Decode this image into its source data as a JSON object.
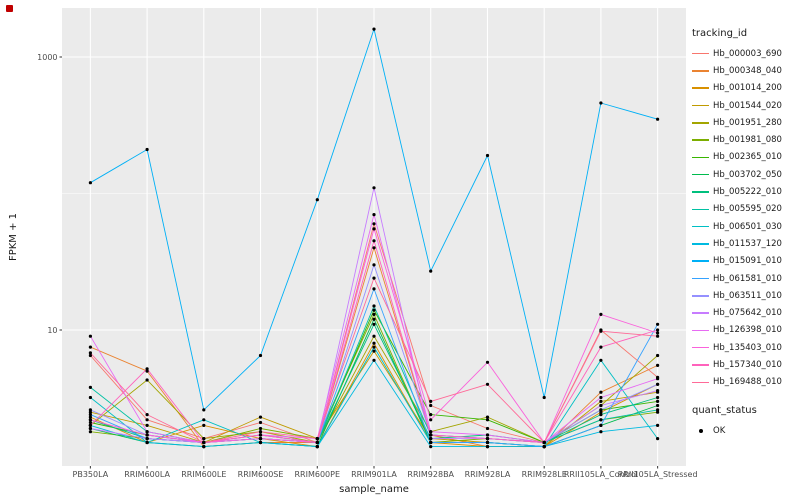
{
  "figure": {
    "background": "#FFFFFF",
    "panel_background": "#EBEBEB",
    "gridline_color": "#FFFFFF",
    "tick_text_color": "#4D4D4D"
  },
  "chart_data": {
    "type": "line",
    "title": "",
    "xlabel": "sample_name",
    "ylabel": "FPKM + 1",
    "y_scale": "log10",
    "ylim": [
      1,
      2300
    ],
    "y_ticks": [
      10,
      1000
    ],
    "y_tick_labels": [
      "10",
      "1000"
    ],
    "grid": true,
    "legend_position": "right",
    "legend_title": "tracking_id",
    "legend2_title": "quant_status",
    "quant_status_items": [
      "OK"
    ],
    "point_color": "#000000",
    "panel_bg": "#EBEBEB",
    "x": [
      "PB350LA",
      "RRIM600LA",
      "RRIM600LE",
      "RRIM600SE",
      "RRIM600PE",
      "RRIM901LA",
      "RRIM928BA",
      "RRIM928LA",
      "RRIM928LE",
      "RRII105LA_Control",
      "RRII105LA_Stressed"
    ],
    "series": [
      {
        "name": "Hb_000003_690",
        "color": "#F8766D",
        "values": [
          6.5,
          2.2,
          1.6,
          2.1,
          1.5,
          60,
          2.8,
          1.9,
          1.5,
          10,
          4.5
        ]
      },
      {
        "name": "Hb_000348_040",
        "color": "#EA8331",
        "values": [
          7.5,
          5.0,
          1.4,
          1.5,
          1.5,
          40,
          1.7,
          1.4,
          1.4,
          3.5,
          5.5
        ]
      },
      {
        "name": "Hb_001014_200",
        "color": "#D89000",
        "values": [
          2.3,
          1.5,
          2.0,
          1.6,
          1.4,
          8.0,
          1.5,
          1.4,
          1.4,
          2.5,
          4.0
        ]
      },
      {
        "name": "Hb_001544_020",
        "color": "#C09B00",
        "values": [
          2.5,
          2.0,
          1.5,
          2.3,
          1.6,
          7.0,
          1.6,
          1.5,
          1.4,
          3.0,
          3.5
        ]
      },
      {
        "name": "Hb_001951_280",
        "color": "#A3A500",
        "values": [
          2.0,
          4.3,
          1.6,
          1.8,
          1.5,
          9.0,
          1.8,
          2.3,
          1.5,
          2.8,
          6.5
        ]
      },
      {
        "name": "Hb_001981_080",
        "color": "#7CAE00",
        "values": [
          1.8,
          1.6,
          1.5,
          1.9,
          1.6,
          13,
          1.5,
          1.6,
          1.5,
          2.2,
          2.5
        ]
      },
      {
        "name": "Hb_002365_010",
        "color": "#39B600",
        "values": [
          2.1,
          1.7,
          1.5,
          1.6,
          1.5,
          14,
          2.4,
          2.2,
          1.5,
          2.6,
          3.0
        ]
      },
      {
        "name": "Hb_003702_050",
        "color": "#00BB4E",
        "values": [
          1.9,
          1.5,
          1.4,
          1.5,
          1.4,
          12,
          1.5,
          1.5,
          1.4,
          2.0,
          2.8
        ]
      },
      {
        "name": "Hb_005222_010",
        "color": "#00BF7D",
        "values": [
          2.2,
          1.6,
          1.5,
          1.6,
          1.5,
          11,
          1.6,
          1.7,
          1.5,
          2.4,
          3.2
        ]
      },
      {
        "name": "Hb_005595_020",
        "color": "#00C1A3",
        "values": [
          3.8,
          1.8,
          1.5,
          1.7,
          1.5,
          15,
          1.7,
          1.6,
          1.5,
          2.2,
          2.6
        ]
      },
      {
        "name": "Hb_006501_030",
        "color": "#00BFC4",
        "values": [
          3.2,
          1.5,
          2.2,
          1.5,
          1.4,
          7.5,
          1.5,
          1.5,
          1.4,
          6.0,
          1.6
        ]
      },
      {
        "name": "Hb_011537_120",
        "color": "#00BAE0",
        "values": [
          2.0,
          1.5,
          1.4,
          1.5,
          1.4,
          6.0,
          1.4,
          1.4,
          1.4,
          1.8,
          2.0
        ]
      },
      {
        "name": "Hb_015091_010",
        "color": "#00B0F6",
        "values": [
          120,
          210,
          2.6,
          6.5,
          90,
          1600,
          27,
          190,
          3.2,
          460,
          350
        ]
      },
      {
        "name": "Hb_061581_010",
        "color": "#35A2FF",
        "values": [
          2.4,
          1.6,
          1.5,
          1.6,
          1.5,
          20,
          1.5,
          1.5,
          1.4,
          2.0,
          11
        ]
      },
      {
        "name": "Hb_063511_010",
        "color": "#9590FF",
        "values": [
          2.6,
          1.7,
          1.5,
          1.7,
          1.5,
          30,
          1.7,
          1.6,
          1.5,
          2.6,
          4.0
        ]
      },
      {
        "name": "Hb_075642_010",
        "color": "#C77CFF",
        "values": [
          1.9,
          1.6,
          1.5,
          1.6,
          1.5,
          110,
          1.6,
          1.6,
          1.5,
          2.8,
          3.6
        ]
      },
      {
        "name": "Hb_126398_010",
        "color": "#E76BF3",
        "values": [
          9.0,
          1.8,
          1.5,
          1.7,
          1.6,
          70,
          1.8,
          1.7,
          1.5,
          3.2,
          4.4
        ]
      },
      {
        "name": "Hb_135403_010",
        "color": "#FA62DB",
        "values": [
          2.2,
          1.7,
          1.5,
          1.6,
          1.5,
          55,
          2.2,
          5.8,
          1.5,
          13,
          9.5
        ]
      },
      {
        "name": "Hb_157340_010",
        "color": "#FF62BC",
        "values": [
          2.0,
          5.2,
          1.5,
          1.7,
          1.5,
          45,
          1.7,
          1.6,
          1.5,
          7.5,
          10
        ]
      },
      {
        "name": "Hb_169488_010",
        "color": "#FF6A98",
        "values": [
          6.8,
          2.4,
          1.5,
          1.8,
          1.6,
          24,
          3.0,
          4.0,
          1.5,
          9.8,
          9.0
        ]
      }
    ]
  }
}
